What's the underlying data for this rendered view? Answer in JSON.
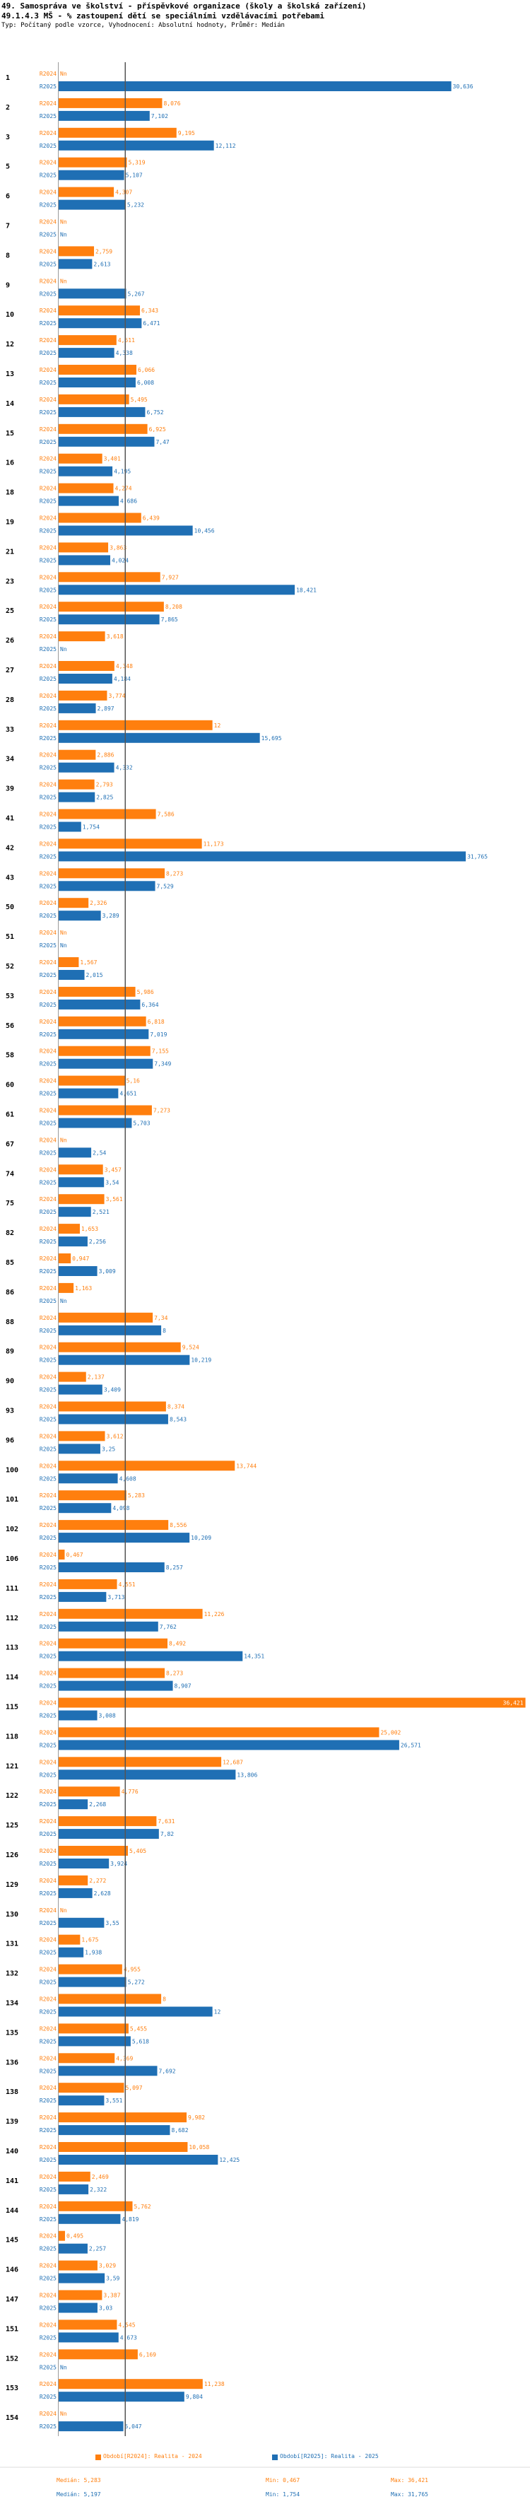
{
  "header": {
    "title_line1": "49. Samospráva ve školství - příspěvkové organizace (školy a školská zařízení)",
    "title_line2": "49.1.4.3 MŠ - % zastoupení dětí se speciálními vzdělávacími potřebami",
    "subtitle": "Typ: Počítaný podle vzorce, Vyhodnocení: Absolutní hodnoty, Průměr: Medián"
  },
  "colors": {
    "series_2024": "#ff7f0e",
    "series_2025": "#1f6fb4",
    "median_line": "#555555"
  },
  "chart_data": {
    "type": "bar",
    "orientation": "horizontal",
    "series_names": [
      "R2024",
      "R2025"
    ],
    "xlim": [
      0,
      36.5
    ],
    "median_value": 5.197,
    "rows": [
      {
        "id": "1",
        "v2024": null,
        "v2025": 30.636,
        "t2024": "Nn",
        "t2025": "30,636"
      },
      {
        "id": "2",
        "v2024": 8.076,
        "v2025": 7.102,
        "t2024": "8,076",
        "t2025": "7,102"
      },
      {
        "id": "3",
        "v2024": 9.195,
        "v2025": 12.112,
        "t2024": "9,195",
        "t2025": "12,112"
      },
      {
        "id": "5",
        "v2024": 5.319,
        "v2025": 5.107,
        "t2024": "5,319",
        "t2025": "5,107"
      },
      {
        "id": "6",
        "v2024": 4.307,
        "v2025": 5.232,
        "t2024": "4,307",
        "t2025": "5,232"
      },
      {
        "id": "7",
        "v2024": null,
        "v2025": null,
        "t2024": "Nn",
        "t2025": "Nn"
      },
      {
        "id": "8",
        "v2024": 2.759,
        "v2025": 2.613,
        "t2024": "2,759",
        "t2025": "2,613"
      },
      {
        "id": "9",
        "v2024": null,
        "v2025": 5.267,
        "t2024": "Nn",
        "t2025": "5,267"
      },
      {
        "id": "10",
        "v2024": 6.343,
        "v2025": 6.471,
        "t2024": "6,343",
        "t2025": "6,471"
      },
      {
        "id": "12",
        "v2024": 4.511,
        "v2025": 4.338,
        "t2024": "4,511",
        "t2025": "4,338"
      },
      {
        "id": "13",
        "v2024": 6.066,
        "v2025": 6.008,
        "t2024": "6,066",
        "t2025": "6,008"
      },
      {
        "id": "14",
        "v2024": 5.495,
        "v2025": 6.752,
        "t2024": "5,495",
        "t2025": "6,752"
      },
      {
        "id": "15",
        "v2024": 6.925,
        "v2025": 7.47,
        "t2024": "6,925",
        "t2025": "7,47"
      },
      {
        "id": "16",
        "v2024": 3.401,
        "v2025": 4.195,
        "t2024": "3,401",
        "t2025": "4,195"
      },
      {
        "id": "18",
        "v2024": 4.274,
        "v2025": 4.686,
        "t2024": "4,274",
        "t2025": "4,686"
      },
      {
        "id": "19",
        "v2024": 6.439,
        "v2025": 10.456,
        "t2024": "6,439",
        "t2025": "10,456"
      },
      {
        "id": "21",
        "v2024": 3.863,
        "v2025": 4.024,
        "t2024": "3,863",
        "t2025": "4,024"
      },
      {
        "id": "23",
        "v2024": 7.927,
        "v2025": 18.421,
        "t2024": "7,927",
        "t2025": "18,421"
      },
      {
        "id": "25",
        "v2024": 8.208,
        "v2025": 7.865,
        "t2024": "8,208",
        "t2025": "7,865"
      },
      {
        "id": "26",
        "v2024": 3.618,
        "v2025": null,
        "t2024": "3,618",
        "t2025": "Nn"
      },
      {
        "id": "27",
        "v2024": 4.348,
        "v2025": 4.184,
        "t2024": "4,348",
        "t2025": "4,184"
      },
      {
        "id": "28",
        "v2024": 3.774,
        "v2025": 2.897,
        "t2024": "3,774",
        "t2025": "2,897"
      },
      {
        "id": "33",
        "v2024": 12,
        "v2025": 15.695,
        "t2024": "12",
        "t2025": "15,695"
      },
      {
        "id": "34",
        "v2024": 2.886,
        "v2025": 4.332,
        "t2024": "2,886",
        "t2025": "4,332"
      },
      {
        "id": "39",
        "v2024": 2.793,
        "v2025": 2.825,
        "t2024": "2,793",
        "t2025": "2,825"
      },
      {
        "id": "41",
        "v2024": 7.586,
        "v2025": 1.754,
        "t2024": "7,586",
        "t2025": "1,754"
      },
      {
        "id": "42",
        "v2024": 11.173,
        "v2025": 31.765,
        "t2024": "11,173",
        "t2025": "31,765"
      },
      {
        "id": "43",
        "v2024": 8.273,
        "v2025": 7.529,
        "t2024": "8,273",
        "t2025": "7,529"
      },
      {
        "id": "50",
        "v2024": 2.326,
        "v2025": 3.289,
        "t2024": "2,326",
        "t2025": "3,289"
      },
      {
        "id": "51",
        "v2024": null,
        "v2025": null,
        "t2024": "Nn",
        "t2025": "Nn"
      },
      {
        "id": "52",
        "v2024": 1.567,
        "v2025": 2.015,
        "t2024": "1,567",
        "t2025": "2,015"
      },
      {
        "id": "53",
        "v2024": 5.986,
        "v2025": 6.364,
        "t2024": "5,986",
        "t2025": "6,364"
      },
      {
        "id": "56",
        "v2024": 6.818,
        "v2025": 7.019,
        "t2024": "6,818",
        "t2025": "7,019"
      },
      {
        "id": "58",
        "v2024": 7.155,
        "v2025": 7.349,
        "t2024": "7,155",
        "t2025": "7,349"
      },
      {
        "id": "60",
        "v2024": 5.16,
        "v2025": 4.651,
        "t2024": "5,16",
        "t2025": "4,651"
      },
      {
        "id": "61",
        "v2024": 7.273,
        "v2025": 5.703,
        "t2024": "7,273",
        "t2025": "5,703"
      },
      {
        "id": "67",
        "v2024": null,
        "v2025": 2.54,
        "t2024": "Nn",
        "t2025": "2,54"
      },
      {
        "id": "74",
        "v2024": 3.457,
        "v2025": 3.54,
        "t2024": "3,457",
        "t2025": "3,54"
      },
      {
        "id": "75",
        "v2024": 3.561,
        "v2025": 2.521,
        "t2024": "3,561",
        "t2025": "2,521"
      },
      {
        "id": "82",
        "v2024": 1.653,
        "v2025": 2.256,
        "t2024": "1,653",
        "t2025": "2,256"
      },
      {
        "id": "85",
        "v2024": 0.947,
        "v2025": 3.009,
        "t2024": "0,947",
        "t2025": "3,009"
      },
      {
        "id": "86",
        "v2024": 1.163,
        "v2025": null,
        "t2024": "1,163",
        "t2025": "Nn"
      },
      {
        "id": "88",
        "v2024": 7.34,
        "v2025": 8,
        "t2024": "7,34",
        "t2025": "8"
      },
      {
        "id": "89",
        "v2024": 9.524,
        "v2025": 10.219,
        "t2024": "9,524",
        "t2025": "10,219"
      },
      {
        "id": "90",
        "v2024": 2.137,
        "v2025": 3.409,
        "t2024": "2,137",
        "t2025": "3,409"
      },
      {
        "id": "93",
        "v2024": 8.374,
        "v2025": 8.543,
        "t2024": "8,374",
        "t2025": "8,543"
      },
      {
        "id": "96",
        "v2024": 3.612,
        "v2025": 3.25,
        "t2024": "3,612",
        "t2025": "3,25"
      },
      {
        "id": "100",
        "v2024": 13.744,
        "v2025": 4.608,
        "t2024": "13,744",
        "t2025": "4,608"
      },
      {
        "id": "101",
        "v2024": 5.283,
        "v2025": 4.098,
        "t2024": "5,283",
        "t2025": "4,098"
      },
      {
        "id": "102",
        "v2024": 8.556,
        "v2025": 10.209,
        "t2024": "8,556",
        "t2025": "10,209"
      },
      {
        "id": "106",
        "v2024": 0.467,
        "v2025": 8.257,
        "t2024": "0,467",
        "t2025": "8,257"
      },
      {
        "id": "111",
        "v2024": 4.551,
        "v2025": 3.713,
        "t2024": "4,551",
        "t2025": "3,713"
      },
      {
        "id": "112",
        "v2024": 11.226,
        "v2025": 7.762,
        "t2024": "11,226",
        "t2025": "7,762"
      },
      {
        "id": "113",
        "v2024": 8.492,
        "v2025": 14.351,
        "t2024": "8,492",
        "t2025": "14,351"
      },
      {
        "id": "114",
        "v2024": 8.273,
        "v2025": 8.907,
        "t2024": "8,273",
        "t2025": "8,907"
      },
      {
        "id": "115",
        "v2024": 36.421,
        "v2025": 3.008,
        "t2024": "36,421",
        "t2025": "3,008"
      },
      {
        "id": "118",
        "v2024": 25.002,
        "v2025": 26.571,
        "t2024": "25,002",
        "t2025": "26,571"
      },
      {
        "id": "121",
        "v2024": 12.687,
        "v2025": 13.806,
        "t2024": "12,687",
        "t2025": "13,806"
      },
      {
        "id": "122",
        "v2024": 4.776,
        "v2025": 2.268,
        "t2024": "4,776",
        "t2025": "2,268"
      },
      {
        "id": "125",
        "v2024": 7.631,
        "v2025": 7.82,
        "t2024": "7,631",
        "t2025": "7,82"
      },
      {
        "id": "126",
        "v2024": 5.405,
        "v2025": 3.924,
        "t2024": "5,405",
        "t2025": "3,924"
      },
      {
        "id": "129",
        "v2024": 2.272,
        "v2025": 2.628,
        "t2024": "2,272",
        "t2025": "2,628"
      },
      {
        "id": "130",
        "v2024": null,
        "v2025": 3.55,
        "t2024": "Nn",
        "t2025": "3,55"
      },
      {
        "id": "131",
        "v2024": 1.675,
        "v2025": 1.938,
        "t2024": "1,675",
        "t2025": "1,938"
      },
      {
        "id": "132",
        "v2024": 4.955,
        "v2025": 5.272,
        "t2024": "4,955",
        "t2025": "5,272"
      },
      {
        "id": "134",
        "v2024": 8,
        "v2025": 12,
        "t2024": "8",
        "t2025": "12"
      },
      {
        "id": "135",
        "v2024": 5.455,
        "v2025": 5.618,
        "t2024": "5,455",
        "t2025": "5,618"
      },
      {
        "id": "136",
        "v2024": 4.369,
        "v2025": 7.692,
        "t2024": "4,369",
        "t2025": "7,692"
      },
      {
        "id": "138",
        "v2024": 5.097,
        "v2025": 3.551,
        "t2024": "5,097",
        "t2025": "3,551"
      },
      {
        "id": "139",
        "v2024": 9.982,
        "v2025": 8.682,
        "t2024": "9,982",
        "t2025": "8,682"
      },
      {
        "id": "140",
        "v2024": 10.058,
        "v2025": 12.425,
        "t2024": "10,058",
        "t2025": "12,425"
      },
      {
        "id": "141",
        "v2024": 2.469,
        "v2025": 2.322,
        "t2024": "2,469",
        "t2025": "2,322"
      },
      {
        "id": "144",
        "v2024": 5.762,
        "v2025": 4.819,
        "t2024": "5,762",
        "t2025": "4,819"
      },
      {
        "id": "145",
        "v2024": 0.495,
        "v2025": 2.257,
        "t2024": "0,495",
        "t2025": "2,257"
      },
      {
        "id": "146",
        "v2024": 3.029,
        "v2025": 3.59,
        "t2024": "3,029",
        "t2025": "3,59"
      },
      {
        "id": "147",
        "v2024": 3.387,
        "v2025": 3.03,
        "t2024": "3,387",
        "t2025": "3,03"
      },
      {
        "id": "151",
        "v2024": 4.545,
        "v2025": 4.673,
        "t2024": "4,545",
        "t2025": "4,673"
      },
      {
        "id": "152",
        "v2024": 6.169,
        "v2025": null,
        "t2024": "6,169",
        "t2025": "Nn"
      },
      {
        "id": "153",
        "v2024": 11.238,
        "v2025": 9.804,
        "t2024": "11,238",
        "t2025": "9,804"
      },
      {
        "id": "154",
        "v2024": null,
        "v2025": 5.047,
        "t2024": "Nn",
        "t2025": "5,047"
      }
    ]
  },
  "footer": {
    "legend_2024": "Období[R2024]: Realita - 2024",
    "legend_2025": "Období[R2025]: Realita - 2025",
    "stats_2024": {
      "median": "Medián: 5,283",
      "min": "Min: 0,467",
      "max": "Max: 36,421"
    },
    "stats_2025": {
      "median": "Medián: 5,197",
      "min": "Min: 1,754",
      "max": "Max: 31,765"
    }
  }
}
